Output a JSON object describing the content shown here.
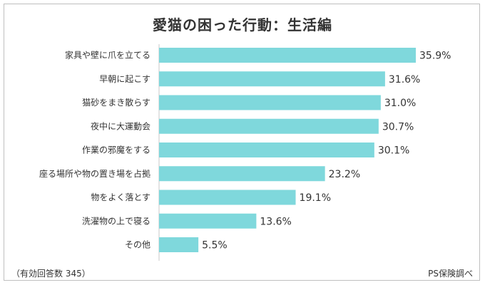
{
  "chart_data": {
    "type": "bar",
    "orientation": "horizontal",
    "title": "愛猫の困った行動：生活編",
    "categories": [
      "家具や壁に爪を立てる",
      "早朝に起こす",
      "猫砂をまき散らす",
      "夜中に大運動会",
      "作業の邪魔をする",
      "座る場所や物の置き場を占拠",
      "物をよく落とす",
      "洗濯物の上で寝る",
      "その他"
    ],
    "values": [
      35.9,
      31.6,
      31.0,
      30.7,
      30.1,
      23.2,
      19.1,
      13.6,
      5.5
    ],
    "value_labels": [
      "35.9%",
      "31.6%",
      "31.0%",
      "30.7%",
      "30.1%",
      "23.2%",
      "19.1%",
      "13.6%",
      "5.5%"
    ],
    "unit": "%",
    "xlim": [
      0,
      35.9
    ],
    "grid": false,
    "bar_color": "#7fd8dc"
  },
  "footer": {
    "note": "（有効回答数 345）",
    "source": "PS保険調べ"
  }
}
